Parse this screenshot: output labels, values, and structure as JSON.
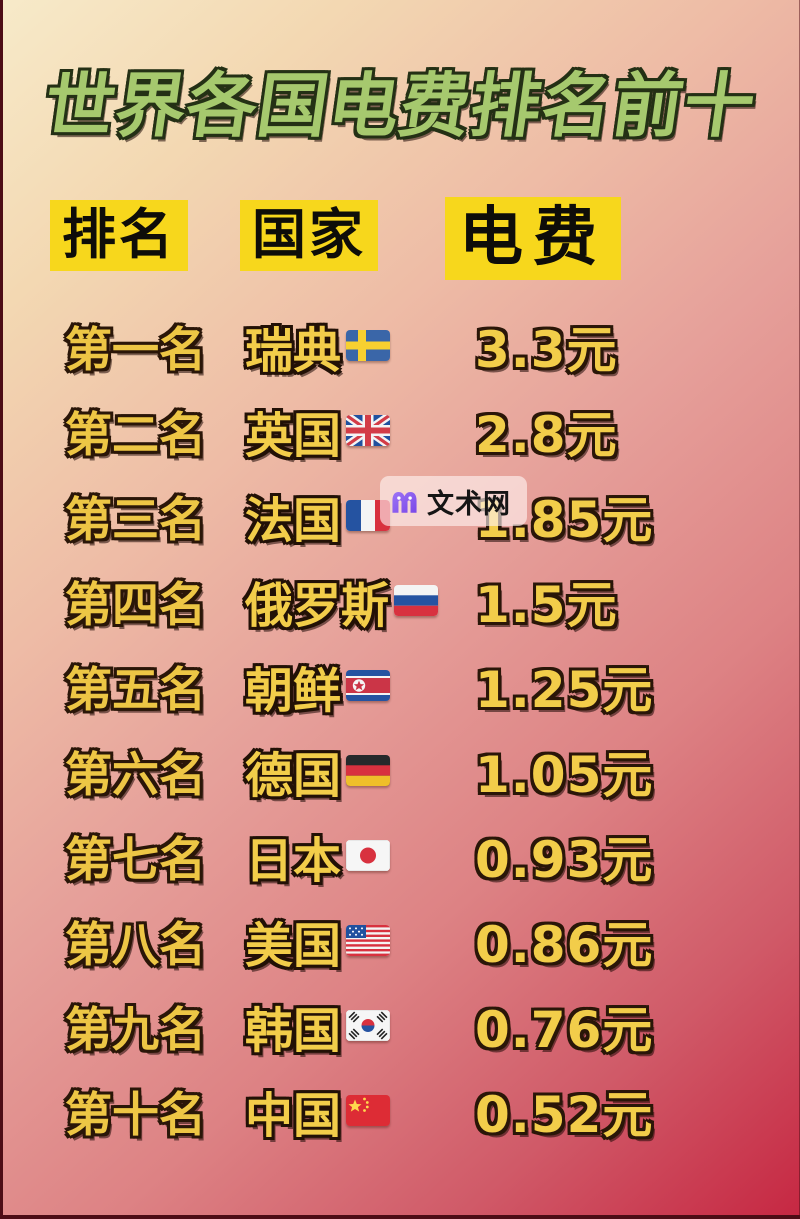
{
  "page": {
    "title": "世界各国电费排名前十",
    "watermark": {
      "text": "文术网",
      "icon": "m-logo-icon"
    },
    "colors": {
      "bg_top_left": "#f7eac9",
      "bg_mid_pink": "#e6a09a",
      "bg_bottom_right": "#c62742",
      "title_fill": "#a6c96e",
      "title_outline": "#243015",
      "header_highlight": "#f7d71c",
      "header_text": "#0e0d09",
      "row_text_gold": "#f2cd4a",
      "row_outline": "#2a1608",
      "watermark_logo_purple": "#8a5cf0"
    },
    "currency_unit": "元"
  },
  "table": {
    "headers": [
      {
        "key": "rank",
        "label": "排名"
      },
      {
        "key": "country",
        "label": "国家"
      },
      {
        "key": "fee",
        "label": "电费"
      }
    ],
    "rows": [
      {
        "rank": "第一名",
        "country": "瑞典",
        "flag": "sweden",
        "fee": "3.3元"
      },
      {
        "rank": "第二名",
        "country": "英国",
        "flag": "uk",
        "fee": "2.8元"
      },
      {
        "rank": "第三名",
        "country": "法国",
        "flag": "france",
        "fee": "1.85元"
      },
      {
        "rank": "第四名",
        "country": "俄罗斯",
        "flag": "russia",
        "fee": "1.5元"
      },
      {
        "rank": "第五名",
        "country": "朝鲜",
        "flag": "north-korea",
        "fee": "1.25元"
      },
      {
        "rank": "第六名",
        "country": "德国",
        "flag": "germany",
        "fee": "1.05元"
      },
      {
        "rank": "第七名",
        "country": "日本",
        "flag": "japan",
        "fee": "0.93元"
      },
      {
        "rank": "第八名",
        "country": "美国",
        "flag": "usa",
        "fee": "0.86元"
      },
      {
        "rank": "第九名",
        "country": "韩国",
        "flag": "south-korea",
        "fee": "0.76元"
      },
      {
        "rank": "第十名",
        "country": "中国",
        "flag": "china",
        "fee": "0.52元"
      }
    ]
  },
  "chart_data": {
    "type": "table",
    "title": "世界各国电费排名前十",
    "columns": [
      "排名",
      "国家",
      "电费"
    ],
    "rows": [
      [
        "第一名",
        "瑞典",
        "3.3元"
      ],
      [
        "第二名",
        "英国",
        "2.8元"
      ],
      [
        "第三名",
        "法国",
        "1.85元"
      ],
      [
        "第四名",
        "俄罗斯",
        "1.5元"
      ],
      [
        "第五名",
        "朝鲜",
        "1.25元"
      ],
      [
        "第六名",
        "德国",
        "1.05元"
      ],
      [
        "第七名",
        "日本",
        "0.93元"
      ],
      [
        "第八名",
        "美国",
        "0.86元"
      ],
      [
        "第九名",
        "韩国",
        "0.76元"
      ],
      [
        "第十名",
        "中国",
        "0.52元"
      ]
    ],
    "values_cny": [
      3.3,
      2.8,
      1.85,
      1.5,
      1.25,
      1.05,
      0.93,
      0.86,
      0.76,
      0.52
    ],
    "unit": "元"
  }
}
